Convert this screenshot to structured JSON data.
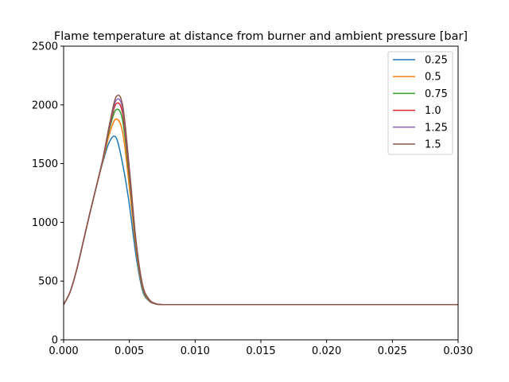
{
  "chart_data": {
    "type": "line",
    "title": "Flame temperature at distance from burner and ambient pressure [bar]",
    "xlabel": "",
    "ylabel": "",
    "xlim": [
      0,
      0.03
    ],
    "ylim": [
      0,
      2500
    ],
    "xticks": [
      "0.000",
      "0.005",
      "0.010",
      "0.015",
      "0.020",
      "0.025",
      "0.030"
    ],
    "xtick_values": [
      0,
      0.005,
      0.01,
      0.015,
      0.02,
      0.025,
      0.03
    ],
    "yticks": [
      "0",
      "500",
      "1000",
      "1500",
      "2000",
      "2500"
    ],
    "ytick_values": [
      0,
      500,
      1000,
      1500,
      2000,
      2500
    ],
    "grid": false,
    "legend_position": "top-right",
    "x": [
      0,
      0.0005,
      0.001,
      0.0015,
      0.002,
      0.0025,
      0.003,
      0.0035,
      0.004,
      0.0045,
      0.005,
      0.0055,
      0.006,
      0.0065,
      0.007,
      0.0075,
      0.008,
      0.009,
      0.01,
      0.015,
      0.02,
      0.025,
      0.03
    ],
    "series": [
      {
        "name": "0.25",
        "color": "#1f77b4",
        "values": [
          300,
          410,
          600,
          840,
          1080,
          1310,
          1520,
          1690,
          1720,
          1490,
          1150,
          720,
          420,
          330,
          305,
          300,
          300,
          300,
          300,
          300,
          300,
          300,
          300
        ]
      },
      {
        "name": "0.5",
        "color": "#ff7f0e",
        "values": [
          300,
          410,
          600,
          840,
          1080,
          1310,
          1530,
          1760,
          1880,
          1760,
          1300,
          780,
          440,
          335,
          305,
          300,
          300,
          300,
          300,
          300,
          300,
          300,
          300
        ]
      },
      {
        "name": "0.75",
        "color": "#2ca02c",
        "values": [
          300,
          410,
          600,
          840,
          1080,
          1310,
          1540,
          1800,
          1960,
          1860,
          1370,
          810,
          450,
          340,
          306,
          300,
          300,
          300,
          300,
          300,
          300,
          300,
          300
        ]
      },
      {
        "name": "1.0",
        "color": "#d62728",
        "values": [
          300,
          410,
          600,
          840,
          1080,
          1310,
          1545,
          1820,
          2010,
          1920,
          1410,
          830,
          460,
          342,
          307,
          300,
          300,
          300,
          300,
          300,
          300,
          300,
          300
        ]
      },
      {
        "name": "1.25",
        "color": "#9467bd",
        "values": [
          300,
          410,
          600,
          840,
          1080,
          1310,
          1548,
          1830,
          2040,
          1960,
          1440,
          840,
          465,
          344,
          308,
          300,
          300,
          300,
          300,
          300,
          300,
          300,
          300
        ]
      },
      {
        "name": "1.5",
        "color": "#8c564b",
        "values": [
          300,
          410,
          600,
          840,
          1080,
          1310,
          1550,
          1840,
          2070,
          1990,
          1460,
          850,
          470,
          345,
          308,
          300,
          300,
          300,
          300,
          300,
          300,
          300,
          300
        ]
      }
    ]
  }
}
